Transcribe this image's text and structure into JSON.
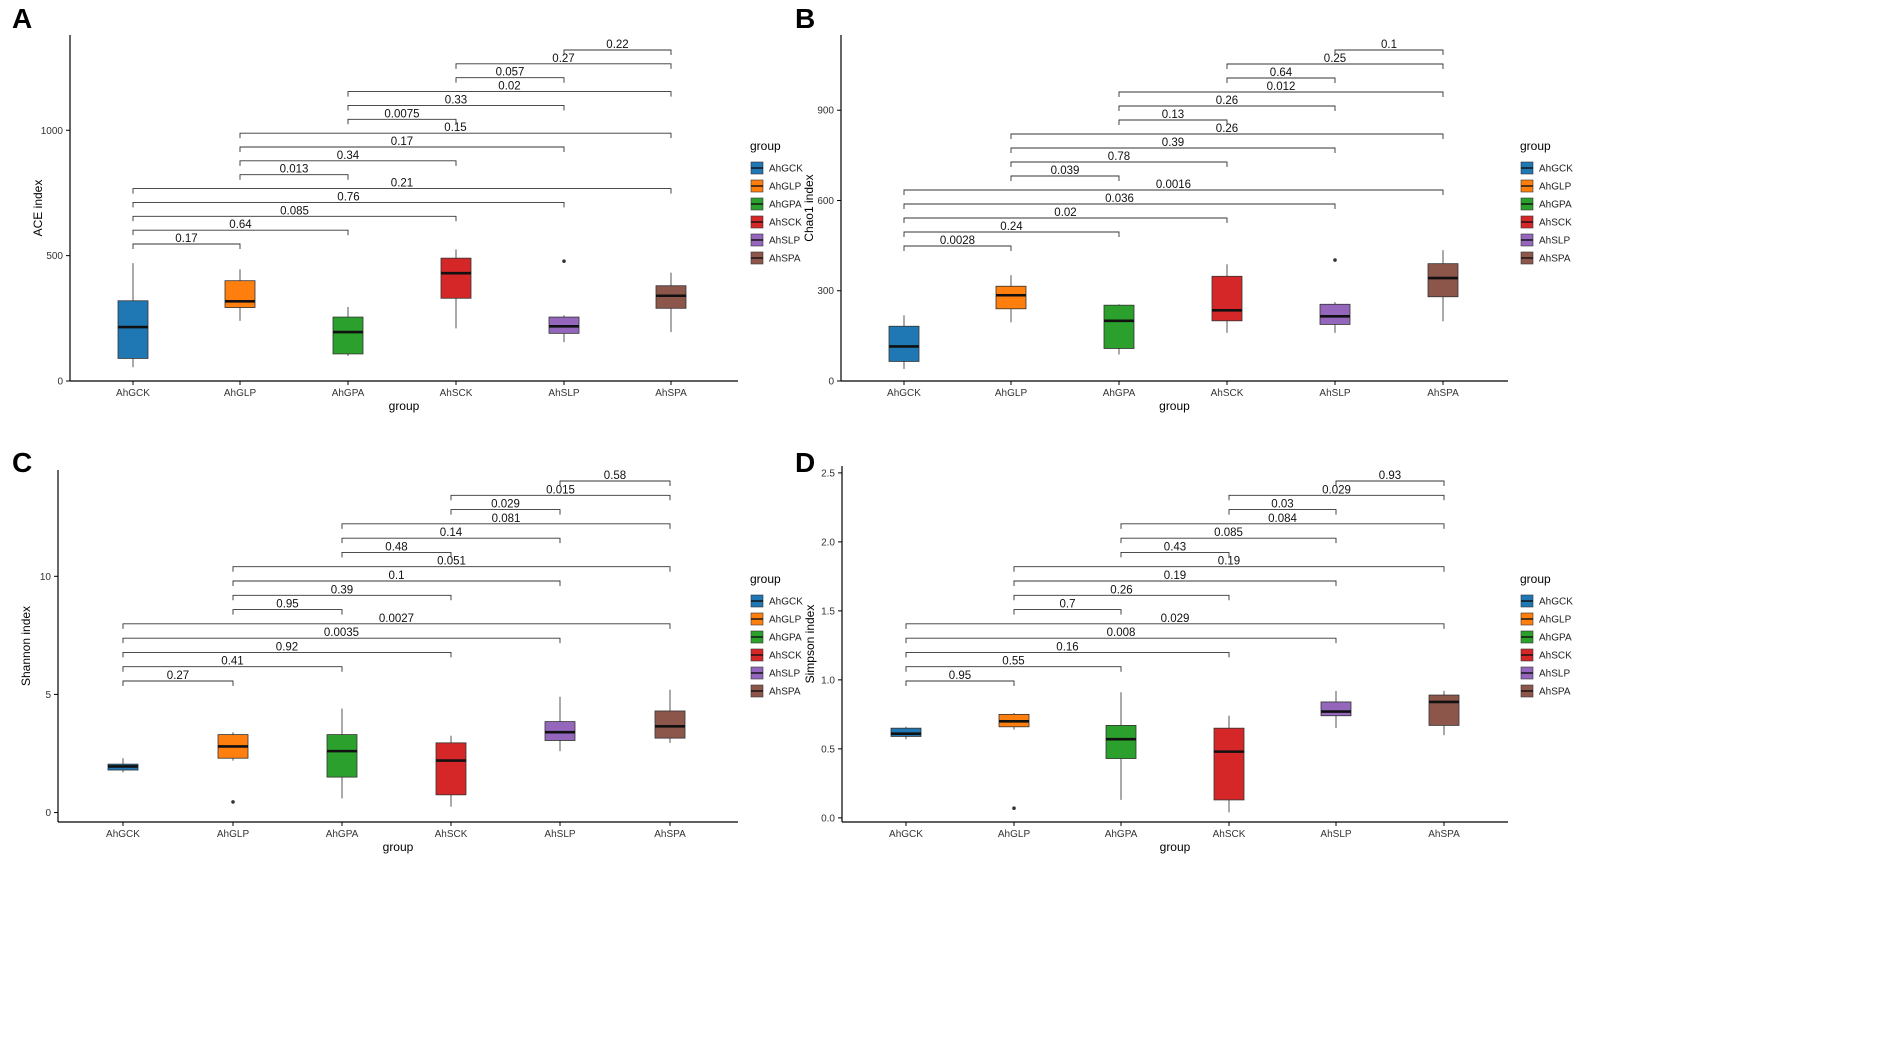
{
  "figure": {
    "groups": [
      "AhGCK",
      "AhGLP",
      "AhGPA",
      "AhSCK",
      "AhSLP",
      "AhSPA"
    ],
    "colors": [
      "#1f77b4",
      "#ff7f0e",
      "#2ca02c",
      "#d62728",
      "#9467bd",
      "#8c564b"
    ],
    "comparisons": [
      [
        0,
        1
      ],
      [
        0,
        2
      ],
      [
        0,
        3
      ],
      [
        0,
        4
      ],
      [
        0,
        5
      ],
      [
        1,
        2
      ],
      [
        1,
        3
      ],
      [
        1,
        4
      ],
      [
        1,
        5
      ],
      [
        2,
        3
      ],
      [
        2,
        4
      ],
      [
        2,
        5
      ],
      [
        3,
        4
      ],
      [
        3,
        5
      ],
      [
        4,
        5
      ]
    ]
  },
  "chart_data": [
    {
      "panel": "A",
      "type": "box",
      "xlabel": "group",
      "ylabel": "ACE index",
      "ylim": [
        0,
        1380
      ],
      "yticks": [
        0,
        500,
        1000
      ],
      "legend": {
        "title": "group",
        "position": "right"
      },
      "boxes": [
        {
          "group": "AhGCK",
          "q1": 90,
          "median": 215,
          "q3": 320,
          "lower": 55,
          "upper": 470,
          "outliers": []
        },
        {
          "group": "AhGLP",
          "q1": 293,
          "median": 318,
          "q3": 400,
          "lower": 240,
          "upper": 445,
          "outliers": []
        },
        {
          "group": "AhGPA",
          "q1": 108,
          "median": 195,
          "q3": 255,
          "lower": 100,
          "upper": 295,
          "outliers": []
        },
        {
          "group": "AhSCK",
          "q1": 330,
          "median": 430,
          "q3": 490,
          "lower": 210,
          "upper": 525,
          "outliers": []
        },
        {
          "group": "AhSLP",
          "q1": 190,
          "median": 218,
          "q3": 255,
          "lower": 155,
          "upper": 262,
          "outliers": [
            478
          ]
        },
        {
          "group": "AhSPA",
          "q1": 290,
          "median": 340,
          "q3": 380,
          "lower": 195,
          "upper": 432,
          "outliers": []
        }
      ],
      "pvalues": [
        "0.17",
        "0.64",
        "0.085",
        "0.76",
        "0.21",
        "0.013",
        "0.34",
        "0.17",
        "0.15",
        "0.0075",
        "0.33",
        "0.02",
        "0.057",
        "0.27",
        "0.22"
      ]
    },
    {
      "panel": "B",
      "type": "box",
      "xlabel": "group",
      "ylabel": "Chao1 index",
      "ylim": [
        0,
        1150
      ],
      "yticks": [
        0,
        300,
        600,
        900
      ],
      "legend": {
        "title": "group",
        "position": "right"
      },
      "boxes": [
        {
          "group": "AhGCK",
          "q1": 65,
          "median": 115,
          "q3": 182,
          "lower": 40,
          "upper": 218,
          "outliers": []
        },
        {
          "group": "AhGLP",
          "q1": 240,
          "median": 285,
          "q3": 315,
          "lower": 195,
          "upper": 352,
          "outliers": []
        },
        {
          "group": "AhGPA",
          "q1": 108,
          "median": 200,
          "q3": 252,
          "lower": 88,
          "upper": 255,
          "outliers": []
        },
        {
          "group": "AhSCK",
          "q1": 200,
          "median": 235,
          "q3": 348,
          "lower": 160,
          "upper": 388,
          "outliers": []
        },
        {
          "group": "AhSLP",
          "q1": 188,
          "median": 215,
          "q3": 255,
          "lower": 160,
          "upper": 262,
          "outliers": [
            402
          ]
        },
        {
          "group": "AhSPA",
          "q1": 280,
          "median": 342,
          "q3": 390,
          "lower": 198,
          "upper": 435,
          "outliers": []
        }
      ],
      "pvalues": [
        "0.0028",
        "0.24",
        "0.02",
        "0.036",
        "0.0016",
        "0.039",
        "0.78",
        "0.39",
        "0.26",
        "0.13",
        "0.26",
        "0.012",
        "0.64",
        "0.25",
        "0.1"
      ]
    },
    {
      "panel": "C",
      "type": "box",
      "xlabel": "group",
      "ylabel": "Shannon index",
      "ylim": [
        -0.4,
        14.5
      ],
      "yticks": [
        0,
        5,
        10
      ],
      "legend": {
        "title": "group",
        "position": "right"
      },
      "boxes": [
        {
          "group": "AhGCK",
          "q1": 1.8,
          "median": 1.95,
          "q3": 2.05,
          "lower": 1.7,
          "upper": 2.3,
          "outliers": []
        },
        {
          "group": "AhGLP",
          "q1": 2.3,
          "median": 2.8,
          "q3": 3.3,
          "lower": 2.2,
          "upper": 3.4,
          "outliers": [
            0.45
          ]
        },
        {
          "group": "AhGPA",
          "q1": 1.5,
          "median": 2.6,
          "q3": 3.3,
          "lower": 0.6,
          "upper": 4.4,
          "outliers": []
        },
        {
          "group": "AhSCK",
          "q1": 0.75,
          "median": 2.2,
          "q3": 2.95,
          "lower": 0.25,
          "upper": 3.25,
          "outliers": []
        },
        {
          "group": "AhSLP",
          "q1": 3.05,
          "median": 3.4,
          "q3": 3.85,
          "lower": 2.6,
          "upper": 4.9,
          "outliers": []
        },
        {
          "group": "AhSPA",
          "q1": 3.15,
          "median": 3.65,
          "q3": 4.3,
          "lower": 2.95,
          "upper": 5.2,
          "outliers": []
        }
      ],
      "pvalues": [
        "0.27",
        "0.41",
        "0.92",
        "0.0035",
        "0.0027",
        "0.95",
        "0.39",
        "0.1",
        "0.051",
        "0.48",
        "0.14",
        "0.081",
        "0.029",
        "0.015",
        "0.58"
      ]
    },
    {
      "panel": "D",
      "type": "box",
      "xlabel": "group",
      "ylabel": "Simpson index",
      "ylim": [
        -0.03,
        2.55
      ],
      "yticks": [
        0.0,
        0.5,
        1.0,
        1.5,
        2.0,
        2.5
      ],
      "legend": {
        "title": "group",
        "position": "right"
      },
      "boxes": [
        {
          "group": "AhGCK",
          "q1": 0.59,
          "median": 0.61,
          "q3": 0.65,
          "lower": 0.57,
          "upper": 0.66,
          "outliers": []
        },
        {
          "group": "AhGLP",
          "q1": 0.66,
          "median": 0.7,
          "q3": 0.75,
          "lower": 0.64,
          "upper": 0.76,
          "outliers": [
            0.07
          ]
        },
        {
          "group": "AhGPA",
          "q1": 0.43,
          "median": 0.57,
          "q3": 0.67,
          "lower": 0.13,
          "upper": 0.91,
          "outliers": []
        },
        {
          "group": "AhSCK",
          "q1": 0.13,
          "median": 0.48,
          "q3": 0.65,
          "lower": 0.04,
          "upper": 0.74,
          "outliers": []
        },
        {
          "group": "AhSLP",
          "q1": 0.74,
          "median": 0.77,
          "q3": 0.84,
          "lower": 0.65,
          "upper": 0.92,
          "outliers": []
        },
        {
          "group": "AhSPA",
          "q1": 0.67,
          "median": 0.84,
          "q3": 0.89,
          "lower": 0.6,
          "upper": 0.92,
          "outliers": []
        }
      ],
      "pvalues": [
        "0.95",
        "0.55",
        "0.16",
        "0.008",
        "0.029",
        "0.7",
        "0.26",
        "0.19",
        "0.19",
        "0.43",
        "0.085",
        "0.084",
        "0.03",
        "0.029",
        "0.93"
      ]
    }
  ]
}
